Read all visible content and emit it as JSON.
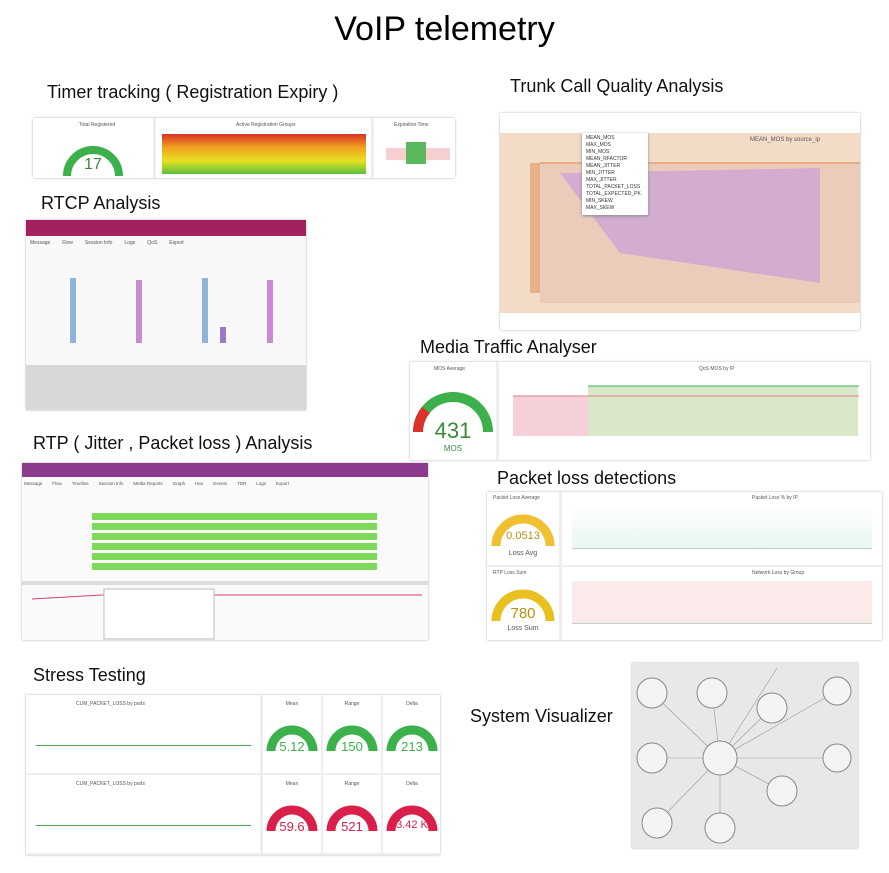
{
  "title": "VoIP telemetry",
  "sections": [
    {
      "heading": "Timer tracking ( Registration Expiry )",
      "panels": [
        "Total Registered",
        "Active Registration Groups",
        "Expiration Time"
      ],
      "value": "17"
    },
    {
      "heading": "Trunk Call Quality Analysis",
      "chart_title": "MEAN_MOS by source_ip",
      "menu": [
        "MEAN_MOS",
        "MAX_MOS",
        "MIN_MOS",
        "MEAN_RFACTOR",
        "MEAN_JITTER",
        "MIN_JITTER",
        "MAX_JITTER",
        "TOTAL_PACKET_LOSS",
        "TOTAL_EXPECTED_PK",
        "MIN_SKEW",
        "MAX_SKEW"
      ]
    },
    {
      "heading": "RTCP Analysis",
      "tabs": [
        "Message",
        "Flow",
        "Session Info",
        "Logs",
        "QoS",
        "Export"
      ]
    },
    {
      "heading": "Media Traffic Analyser",
      "panel": "MOS Average",
      "value": "431",
      "unit": "MOS",
      "chart_title": "QoS MOS by IP"
    },
    {
      "heading": "RTP ( Jitter , Packet loss ) Analysis",
      "tabs": [
        "Message",
        "Flow",
        "Timeline",
        "Session Info",
        "Media Reports",
        "Graph",
        "Hex",
        "Events",
        "TDR",
        "Logs",
        "Export"
      ]
    },
    {
      "heading": "Packet loss detections",
      "gauges": [
        {
          "panel": "Packet Loss Average",
          "value": "0.0513",
          "unit": "Loss Avg",
          "chart_title": "Packet Loss % by IP"
        },
        {
          "panel": "RTP Loss Sum",
          "value": "780",
          "unit": "Loss Sum",
          "chart_title": "Network Loss by Group"
        }
      ]
    },
    {
      "heading": "Stress Testing",
      "rows": [
        {
          "chart_title": "CUM_PACKET_LOSS by pods",
          "stats": [
            {
              "label": "Mean",
              "value": "5.12"
            },
            {
              "label": "Range",
              "value": "150"
            },
            {
              "label": "Delta",
              "value": "213"
            }
          ]
        },
        {
          "chart_title": "CUM_PACKET_LOSS by pods",
          "stats": [
            {
              "label": "Mean",
              "value": "59.6"
            },
            {
              "label": "Range",
              "value": "521"
            },
            {
              "label": "Delta",
              "value": "3.42 K"
            }
          ]
        }
      ]
    },
    {
      "heading": "System Visualizer"
    }
  ]
}
